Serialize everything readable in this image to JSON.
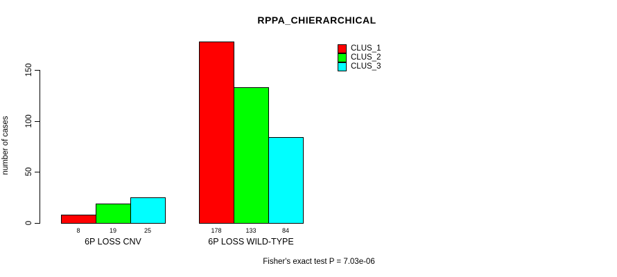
{
  "chart_data": {
    "type": "bar",
    "title": "RPPA_CHIERARCHICAL",
    "xlabel": "",
    "ylabel": "number of cases",
    "categories": [
      "6P LOSS CNV",
      "6P LOSS WILD-TYPE"
    ],
    "series": [
      {
        "name": "CLUS_1",
        "color": "#ff0000",
        "values": [
          8,
          178
        ]
      },
      {
        "name": "CLUS_2",
        "color": "#00ff00",
        "values": [
          19,
          133
        ]
      },
      {
        "name": "CLUS_3",
        "color": "#00ffff",
        "values": [
          25,
          84
        ]
      }
    ],
    "bar_value_labels": [
      [
        "8",
        "19",
        "25"
      ],
      [
        "178",
        "133",
        "84"
      ]
    ],
    "yticks": [
      "0",
      "50",
      "100",
      "150"
    ],
    "ylim": [
      0,
      178
    ],
    "grid": false,
    "legend_position": "top-right",
    "legend_entries": [
      "CLUS_1",
      "CLUS_2",
      "CLUS_3"
    ],
    "annotation": "Fisher's exact test P = 7.03e-06"
  },
  "colors": {
    "clus_1": "#ff0000",
    "clus_2": "#00ff00",
    "clus_3": "#00ffff",
    "axis": "#000000",
    "background": "#ffffff"
  }
}
